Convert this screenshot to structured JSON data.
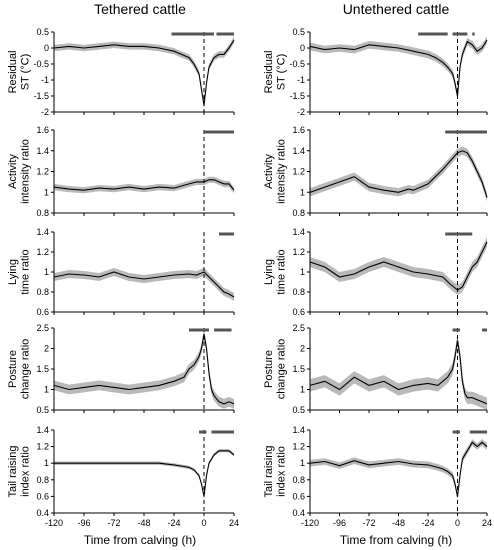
{
  "columns": [
    {
      "title": "Tethered cattle"
    },
    {
      "title": "Untethered cattle"
    }
  ],
  "xlabel": "Time from calving (h)",
  "xlim": [
    -120,
    24
  ],
  "xticks": [
    "-120",
    "-96",
    "-72",
    "-48",
    "-24",
    "0",
    "24"
  ],
  "rows": [
    {
      "ylabel": [
        "Residual",
        "ST (°C)"
      ],
      "ylim": [
        -2,
        0.5
      ],
      "yticks": [
        -2,
        -1.5,
        -1,
        -0.5,
        0,
        0.5
      ],
      "ytick_labels": [
        "-2",
        "-1.5",
        "-1",
        "-0.5",
        "0",
        "0.5"
      ]
    },
    {
      "ylabel": [
        "Activity",
        "intensity ratio"
      ],
      "ylim": [
        0.8,
        1.6
      ],
      "yticks": [
        0.8,
        1,
        1.2,
        1.4,
        1.6
      ],
      "ytick_labels": [
        "0.8",
        "1",
        "1.2",
        "1.4",
        "1.6"
      ]
    },
    {
      "ylabel": [
        "Lying",
        "time ratio"
      ],
      "ylim": [
        0.6,
        1.4
      ],
      "yticks": [
        0.6,
        0.8,
        1,
        1.2,
        1.4
      ],
      "ytick_labels": [
        "0.6",
        "0.8",
        "1",
        "1.2",
        "1.4"
      ]
    },
    {
      "ylabel": [
        "Posture",
        "change ratio"
      ],
      "ylim": [
        0.5,
        2.5
      ],
      "yticks": [
        0.5,
        1,
        1.5,
        2,
        2.5
      ],
      "ytick_labels": [
        "0.5",
        "1",
        "1.5",
        "2",
        "2.5"
      ]
    },
    {
      "ylabel": [
        "Tail raising",
        "index ratio"
      ],
      "ylim": [
        0.4,
        1.4
      ],
      "yticks": [
        0.4,
        0.6,
        0.8,
        1,
        1.2,
        1.4
      ],
      "ytick_labels": [
        "0.4",
        "0.6",
        "0.8",
        "1",
        "1.2",
        "1.4"
      ]
    }
  ],
  "chart_data": [
    {
      "type": "area",
      "panel": "Tethered cattle / Residual ST",
      "xlim": [
        -120,
        24
      ],
      "ylim": [
        -2,
        0.5
      ],
      "x": [
        -120,
        -108,
        -96,
        -84,
        -72,
        -60,
        -48,
        -36,
        -24,
        -18,
        -12,
        -8,
        -4,
        -2,
        0,
        2,
        4,
        8,
        12,
        16,
        20,
        24
      ],
      "y": [
        0,
        0.05,
        0,
        0.05,
        0.1,
        0.05,
        0.05,
        0,
        -0.1,
        -0.2,
        -0.3,
        -0.5,
        -0.8,
        -1.3,
        -1.8,
        -1.1,
        -0.6,
        -0.3,
        -0.2,
        -0.2,
        0,
        0.25
      ],
      "band": 0.1,
      "significant_intervals": [
        [
          -26,
          8
        ],
        [
          10,
          24
        ]
      ]
    },
    {
      "type": "area",
      "panel": "Untethered cattle / Residual ST",
      "xlim": [
        -120,
        24
      ],
      "ylim": [
        -2,
        0.5
      ],
      "x": [
        -120,
        -108,
        -96,
        -84,
        -72,
        -60,
        -48,
        -36,
        -24,
        -18,
        -12,
        -8,
        -4,
        -2,
        0,
        2,
        4,
        8,
        12,
        16,
        20,
        24
      ],
      "y": [
        0.05,
        -0.05,
        0,
        -0.05,
        0.1,
        0.05,
        0,
        -0.1,
        -0.2,
        -0.3,
        -0.45,
        -0.6,
        -0.8,
        -1.1,
        -1.5,
        -0.6,
        -0.2,
        0.2,
        0.1,
        -0.1,
        0,
        0.25
      ],
      "band": 0.12,
      "significant_intervals": [
        [
          -32,
          -8
        ],
        [
          -4,
          8
        ],
        [
          12,
          14
        ]
      ]
    },
    {
      "type": "area",
      "panel": "Tethered cattle / Activity intensity ratio",
      "xlim": [
        -120,
        24
      ],
      "ylim": [
        0.8,
        1.6
      ],
      "x": [
        -120,
        -108,
        -96,
        -84,
        -72,
        -60,
        -48,
        -36,
        -24,
        -12,
        -6,
        0,
        4,
        8,
        12,
        16,
        20,
        24
      ],
      "y": [
        1.05,
        1.03,
        1.02,
        1.04,
        1.03,
        1.05,
        1.03,
        1.05,
        1.04,
        1.08,
        1.1,
        1.1,
        1.12,
        1.12,
        1.1,
        1.08,
        1.08,
        1.02
      ],
      "band": 0.03,
      "significant_intervals": [
        [
          0,
          24
        ]
      ]
    },
    {
      "type": "area",
      "panel": "Untethered cattle / Activity intensity ratio",
      "xlim": [
        -120,
        24
      ],
      "ylim": [
        0.8,
        1.6
      ],
      "x": [
        -120,
        -108,
        -96,
        -84,
        -72,
        -60,
        -48,
        -40,
        -36,
        -30,
        -24,
        -18,
        -12,
        -6,
        0,
        4,
        8,
        12,
        16,
        20,
        24
      ],
      "y": [
        1.0,
        1.05,
        1.1,
        1.15,
        1.05,
        1.02,
        1.0,
        1.03,
        1.02,
        1.05,
        1.08,
        1.15,
        1.22,
        1.3,
        1.38,
        1.4,
        1.38,
        1.3,
        1.2,
        1.1,
        0.95
      ],
      "band": 0.04,
      "significant_intervals": [
        [
          -10,
          24
        ]
      ]
    },
    {
      "type": "area",
      "panel": "Tethered cattle / Lying time ratio",
      "xlim": [
        -120,
        24
      ],
      "ylim": [
        0.6,
        1.4
      ],
      "x": [
        -120,
        -108,
        -96,
        -84,
        -72,
        -60,
        -48,
        -36,
        -24,
        -12,
        -6,
        0,
        4,
        8,
        12,
        16,
        20,
        24
      ],
      "y": [
        0.95,
        0.98,
        0.97,
        0.95,
        1.0,
        0.95,
        0.93,
        0.95,
        0.97,
        0.98,
        0.97,
        1.0,
        0.95,
        0.9,
        0.85,
        0.8,
        0.78,
        0.75
      ],
      "band": 0.04,
      "significant_intervals": [
        [
          12,
          24
        ]
      ]
    },
    {
      "type": "area",
      "panel": "Untethered cattle / Lying time ratio",
      "xlim": [
        -120,
        24
      ],
      "ylim": [
        0.6,
        1.4
      ],
      "x": [
        -120,
        -108,
        -96,
        -84,
        -72,
        -60,
        -48,
        -36,
        -24,
        -12,
        -6,
        0,
        4,
        8,
        12,
        16,
        20,
        24
      ],
      "y": [
        1.1,
        1.05,
        0.95,
        0.98,
        1.05,
        1.1,
        1.05,
        1.0,
        0.98,
        0.95,
        0.88,
        0.82,
        0.85,
        0.95,
        1.05,
        1.1,
        1.2,
        1.3
      ],
      "band": 0.05,
      "significant_intervals": [
        [
          -10,
          12
        ]
      ]
    },
    {
      "type": "area",
      "panel": "Tethered cattle / Posture change ratio",
      "xlim": [
        -120,
        24
      ],
      "ylim": [
        0.5,
        2.5
      ],
      "x": [
        -120,
        -108,
        -96,
        -84,
        -72,
        -60,
        -48,
        -36,
        -24,
        -16,
        -12,
        -8,
        -4,
        -2,
        0,
        2,
        4,
        6,
        8,
        12,
        16,
        20,
        24
      ],
      "y": [
        1.1,
        1.0,
        1.05,
        1.1,
        1.05,
        1.0,
        1.05,
        1.1,
        1.2,
        1.3,
        1.5,
        1.6,
        1.8,
        2.0,
        2.35,
        2.0,
        1.4,
        1.0,
        0.85,
        0.7,
        0.65,
        0.7,
        0.65
      ],
      "band": 0.12,
      "significant_intervals": [
        [
          -12,
          4
        ],
        [
          8,
          22
        ]
      ]
    },
    {
      "type": "area",
      "panel": "Untethered cattle / Posture change ratio",
      "xlim": [
        -120,
        24
      ],
      "ylim": [
        0.5,
        2.5
      ],
      "x": [
        -120,
        -108,
        -96,
        -84,
        -72,
        -60,
        -48,
        -36,
        -24,
        -16,
        -12,
        -8,
        -4,
        -2,
        0,
        2,
        4,
        6,
        8,
        12,
        16,
        20,
        24
      ],
      "y": [
        1.1,
        1.2,
        1.0,
        1.3,
        1.1,
        1.2,
        1.0,
        1.1,
        1.15,
        1.1,
        1.2,
        1.3,
        1.5,
        1.8,
        2.2,
        1.8,
        1.2,
        0.9,
        0.8,
        0.8,
        0.75,
        0.7,
        0.65
      ],
      "band": 0.15,
      "significant_intervals": [
        [
          -4,
          2
        ],
        [
          20,
          24
        ]
      ]
    },
    {
      "type": "area",
      "panel": "Tethered cattle / Tail raising index ratio",
      "xlim": [
        -120,
        24
      ],
      "ylim": [
        0.4,
        1.4
      ],
      "x": [
        -120,
        -108,
        -96,
        -84,
        -72,
        -60,
        -48,
        -36,
        -24,
        -16,
        -12,
        -8,
        -4,
        -2,
        0,
        2,
        4,
        8,
        12,
        16,
        20,
        24
      ],
      "y": [
        1.0,
        1.0,
        1.0,
        1.0,
        1.0,
        1.0,
        1.0,
        1.0,
        0.98,
        0.96,
        0.95,
        0.92,
        0.85,
        0.75,
        0.6,
        0.85,
        1.0,
        1.1,
        1.15,
        1.15,
        1.15,
        1.1
      ],
      "band": 0.02,
      "significant_intervals": [
        [
          -4,
          2
        ],
        [
          6,
          24
        ]
      ]
    },
    {
      "type": "area",
      "panel": "Untethered cattle / Tail raising index ratio",
      "xlim": [
        -120,
        24
      ],
      "ylim": [
        0.4,
        1.4
      ],
      "x": [
        -120,
        -108,
        -96,
        -84,
        -72,
        -60,
        -48,
        -36,
        -24,
        -16,
        -12,
        -8,
        -4,
        -2,
        0,
        2,
        4,
        8,
        12,
        16,
        20,
        24
      ],
      "y": [
        1.0,
        1.02,
        0.97,
        1.03,
        0.98,
        1.0,
        1.02,
        0.99,
        0.98,
        0.95,
        0.93,
        0.9,
        0.85,
        0.75,
        0.6,
        0.85,
        1.05,
        1.15,
        1.25,
        1.2,
        1.25,
        1.2
      ],
      "band": 0.04,
      "significant_intervals": [
        [
          -4,
          2
        ],
        [
          10,
          24
        ]
      ]
    }
  ]
}
